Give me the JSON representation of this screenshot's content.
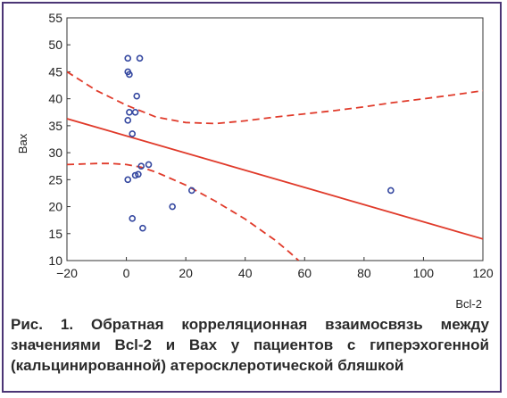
{
  "chart_data": {
    "type": "scatter",
    "xlabel": "Bcl-2",
    "ylabel": "Bax",
    "xlim": [
      -20,
      120
    ],
    "ylim": [
      10,
      55
    ],
    "xticks": [
      -20,
      0,
      20,
      40,
      60,
      80,
      100,
      120
    ],
    "yticks": [
      10,
      15,
      20,
      25,
      30,
      35,
      40,
      45,
      50,
      55
    ],
    "grid": false,
    "points": [
      {
        "x": 0.5,
        "y": 47.5
      },
      {
        "x": 4.5,
        "y": 47.5
      },
      {
        "x": 0.5,
        "y": 45.0
      },
      {
        "x": 1.0,
        "y": 44.5
      },
      {
        "x": 3.5,
        "y": 40.5
      },
      {
        "x": 1.0,
        "y": 37.5
      },
      {
        "x": 3.0,
        "y": 37.5
      },
      {
        "x": 0.5,
        "y": 36.0
      },
      {
        "x": 2.0,
        "y": 33.5
      },
      {
        "x": 5.0,
        "y": 27.5
      },
      {
        "x": 7.5,
        "y": 27.8
      },
      {
        "x": 4.0,
        "y": 26.0
      },
      {
        "x": 3.0,
        "y": 25.8
      },
      {
        "x": 0.5,
        "y": 25.0
      },
      {
        "x": 22.0,
        "y": 23.0
      },
      {
        "x": 89.0,
        "y": 23.0
      },
      {
        "x": 15.5,
        "y": 20.0
      },
      {
        "x": 2.0,
        "y": 17.8
      },
      {
        "x": 5.5,
        "y": 16.0
      }
    ],
    "regression": {
      "x": [
        -20,
        120
      ],
      "y": [
        36.3,
        14.0
      ]
    },
    "confidence_upper": {
      "x": [
        -20,
        -10,
        0,
        10,
        20,
        30,
        40,
        50,
        60,
        70,
        80,
        90,
        100,
        110,
        120
      ],
      "y": [
        45.0,
        41.5,
        38.8,
        36.6,
        35.6,
        35.4,
        35.9,
        36.6,
        37.2,
        37.8,
        38.5,
        39.3,
        40.0,
        40.7,
        41.5
      ]
    },
    "confidence_lower": {
      "x": [
        -20,
        -10,
        -5,
        0,
        5,
        10,
        20,
        30,
        40,
        50,
        55,
        58
      ],
      "y": [
        27.8,
        28.0,
        28.0,
        27.8,
        27.3,
        26.4,
        24.0,
        21.0,
        17.7,
        13.8,
        11.5,
        10.0
      ]
    },
    "colors": {
      "points": "#3548a0",
      "lines": "#e03a2a",
      "axes": "#333333",
      "frame": "#4b3575"
    }
  },
  "caption": "Рис. 1. Обратная корреляционная взаимосвязь между значениями Bcl-2 и Bax у пациентов с гиперэхогенной (кальцинированной) атеросклеротической бляшкой"
}
